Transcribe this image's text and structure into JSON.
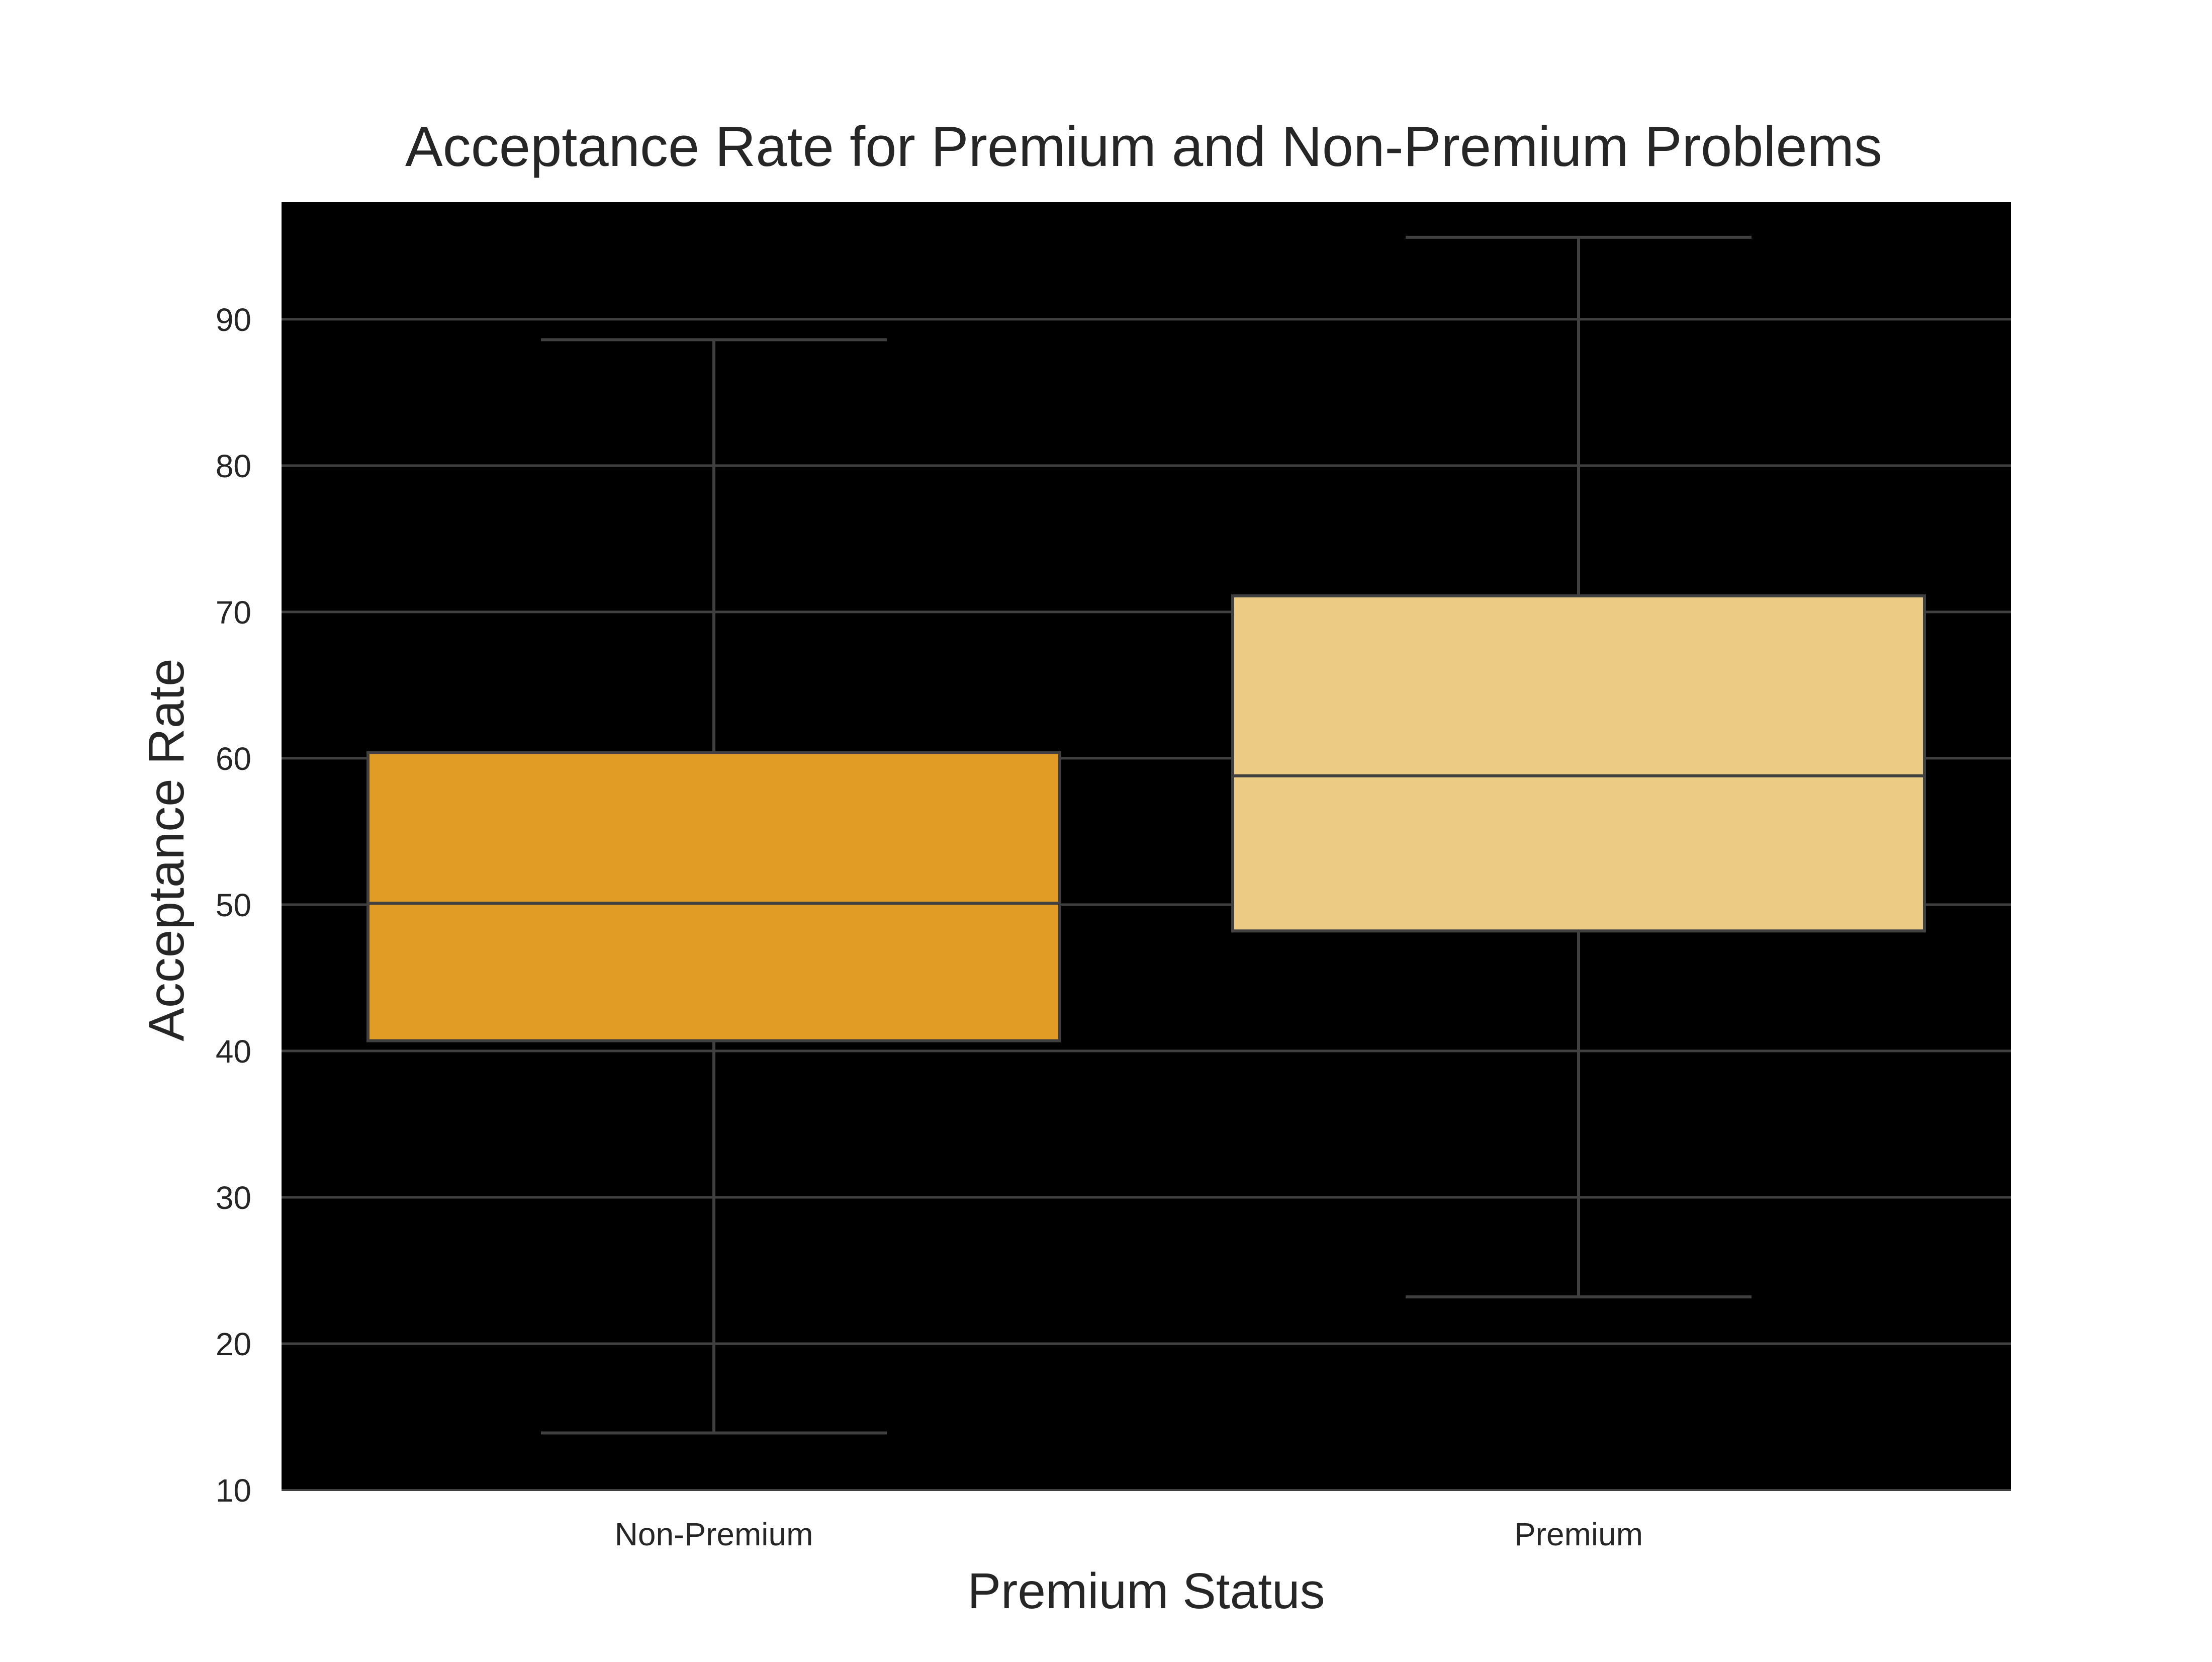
{
  "chart_data": {
    "type": "box",
    "title": "Acceptance Rate for Premium and Non-Premium Problems",
    "xlabel": "Premium Status",
    "ylabel": "Acceptance Rate",
    "categories": [
      "Non-Premium",
      "Premium"
    ],
    "boxes": [
      {
        "name": "Non-Premium",
        "whisker_low": 13.9,
        "q1": 40.7,
        "median": 50.1,
        "q3": 60.4,
        "whisker_high": 88.6,
        "color": "#e09c24"
      },
      {
        "name": "Premium",
        "whisker_low": 23.2,
        "q1": 48.2,
        "median": 58.8,
        "q3": 71.1,
        "whisker_high": 95.6,
        "color": "#eccb84"
      }
    ],
    "ylim": [
      10,
      98
    ],
    "yticks": [
      10,
      20,
      30,
      40,
      50,
      60,
      70,
      80,
      90
    ],
    "grid": true,
    "plot_background": "#000000",
    "line_color": "#404040"
  }
}
